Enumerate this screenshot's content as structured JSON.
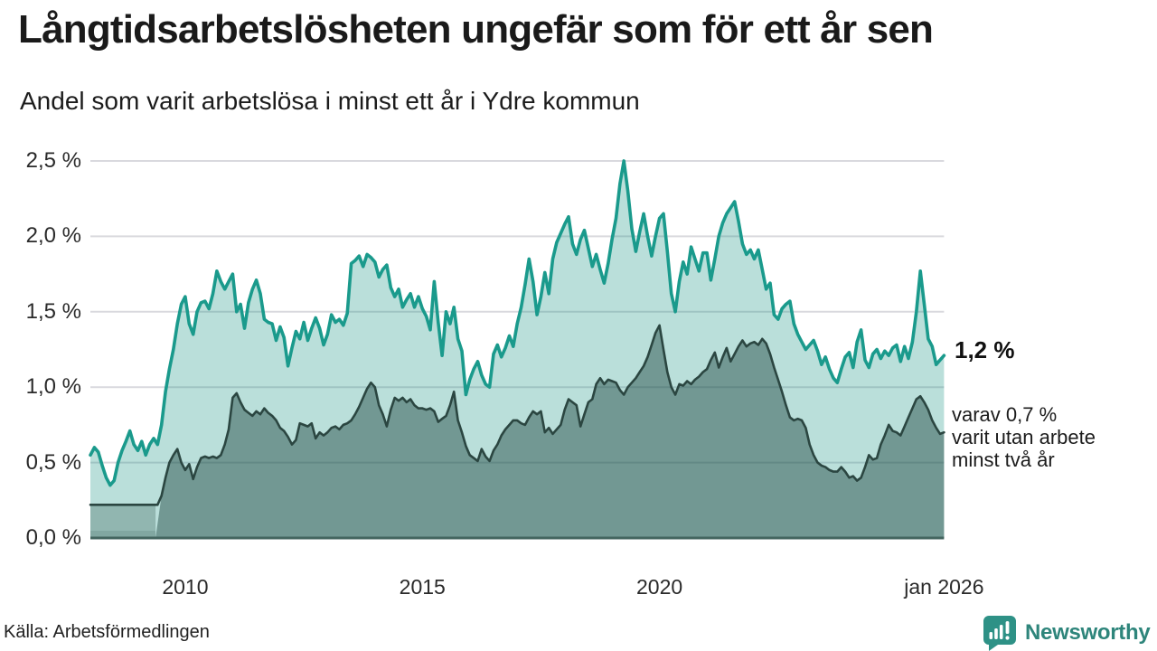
{
  "header": {
    "title": "Långtidsarbetslösheten ungefär som för ett år sen",
    "subtitle": "Andel som varit arbetslösa i minst ett år i Ydre kommun"
  },
  "footer": {
    "source": "Källa: Arbetsförmedlingen",
    "logo_text": "Newsworthy"
  },
  "chart_data": {
    "type": "area",
    "title": "Andel som varit arbetslösa i minst ett år i Ydre kommun",
    "x_start": "2008-01",
    "x_end": "2026-01",
    "frequency": "monthly",
    "ylim": [
      0,
      2.5
    ],
    "y_tick_labels": [
      "0,0 %",
      "0,5 %",
      "1,0 %",
      "1,5 %",
      "2,0 %",
      "2,5 %"
    ],
    "x_ticks": [
      {
        "label": "2010",
        "month": 24
      },
      {
        "label": "2015",
        "month": 84
      },
      {
        "label": "2020",
        "month": 144
      },
      {
        "label": "jan 2026",
        "month": 216
      }
    ],
    "grid": "horizontal",
    "legend": "none",
    "annotations": {
      "end_value_label": "1,2 %",
      "sub_label": [
        "varav 0,7 %",
        "varit utan arbete",
        "minst två år"
      ]
    },
    "colors": {
      "line_teal": "#1a9a8c",
      "area_light": "rgba(26,150,134,0.30)",
      "line_dark": "#2b4641",
      "area_dark": "rgba(27,66,59,0.45)",
      "area_pre": "rgba(27,66,59,0.26)",
      "area_pre_bottom": "rgba(27,66,59,0.13)",
      "grid": "#d9d9de",
      "axis": "#43655f",
      "accent": "#2e9186"
    },
    "two_year_fill_start": 18,
    "series": [
      {
        "name": "Arbetslösa minst ett år (%)",
        "values": [
          0.55,
          0.6,
          0.57,
          0.48,
          0.4,
          0.35,
          0.38,
          0.5,
          0.58,
          0.64,
          0.71,
          0.62,
          0.58,
          0.64,
          0.55,
          0.62,
          0.66,
          0.62,
          0.75,
          0.97,
          1.12,
          1.25,
          1.42,
          1.55,
          1.6,
          1.42,
          1.35,
          1.5,
          1.56,
          1.57,
          1.52,
          1.62,
          1.77,
          1.7,
          1.65,
          1.7,
          1.75,
          1.5,
          1.55,
          1.39,
          1.56,
          1.65,
          1.71,
          1.62,
          1.45,
          1.43,
          1.42,
          1.31,
          1.4,
          1.33,
          1.14,
          1.26,
          1.37,
          1.32,
          1.43,
          1.31,
          1.39,
          1.46,
          1.39,
          1.28,
          1.35,
          1.48,
          1.43,
          1.45,
          1.41,
          1.49,
          1.82,
          1.84,
          1.87,
          1.8,
          1.88,
          1.86,
          1.83,
          1.73,
          1.78,
          1.81,
          1.66,
          1.6,
          1.65,
          1.53,
          1.58,
          1.62,
          1.53,
          1.6,
          1.52,
          1.47,
          1.38,
          1.7,
          1.43,
          1.21,
          1.5,
          1.42,
          1.53,
          1.32,
          1.24,
          0.95,
          1.05,
          1.12,
          1.17,
          1.08,
          1.02,
          1.0,
          1.22,
          1.28,
          1.2,
          1.26,
          1.34,
          1.27,
          1.42,
          1.53,
          1.68,
          1.85,
          1.7,
          1.48,
          1.6,
          1.76,
          1.62,
          1.85,
          1.96,
          2.02,
          2.08,
          2.13,
          1.95,
          1.88,
          1.98,
          2.04,
          1.92,
          1.8,
          1.88,
          1.78,
          1.69,
          1.82,
          1.98,
          2.12,
          2.35,
          2.5,
          2.3,
          2.05,
          1.9,
          2.03,
          2.15,
          2.0,
          1.87,
          2.0,
          2.12,
          2.15,
          1.9,
          1.62,
          1.5,
          1.7,
          1.83,
          1.75,
          1.93,
          1.85,
          1.77,
          1.89,
          1.89,
          1.71,
          1.85,
          2.0,
          2.09,
          2.15,
          2.19,
          2.23,
          2.1,
          1.95,
          1.88,
          1.91,
          1.85,
          1.91,
          1.78,
          1.65,
          1.69,
          1.48,
          1.45,
          1.52,
          1.55,
          1.57,
          1.42,
          1.35,
          1.3,
          1.25,
          1.28,
          1.31,
          1.24,
          1.15,
          1.2,
          1.12,
          1.06,
          1.03,
          1.12,
          1.2,
          1.23,
          1.13,
          1.3,
          1.38,
          1.18,
          1.13,
          1.22,
          1.25,
          1.19,
          1.24,
          1.21,
          1.26,
          1.28,
          1.17,
          1.27,
          1.19,
          1.3,
          1.5,
          1.77,
          1.55,
          1.32,
          1.27,
          1.15,
          1.18,
          1.21
        ]
      },
      {
        "name": "varav arbetslösa minst två år (%)",
        "values": [
          0.22,
          0.22,
          0.22,
          0.22,
          0.22,
          0.22,
          0.22,
          0.22,
          0.22,
          0.22,
          0.22,
          0.22,
          0.22,
          0.22,
          0.22,
          0.22,
          0.22,
          0.22,
          0.28,
          0.4,
          0.5,
          0.55,
          0.59,
          0.5,
          0.45,
          0.49,
          0.39,
          0.47,
          0.53,
          0.54,
          0.53,
          0.54,
          0.53,
          0.55,
          0.62,
          0.72,
          0.93,
          0.96,
          0.9,
          0.85,
          0.83,
          0.81,
          0.84,
          0.82,
          0.86,
          0.83,
          0.81,
          0.78,
          0.73,
          0.71,
          0.67,
          0.62,
          0.65,
          0.76,
          0.75,
          0.74,
          0.76,
          0.66,
          0.7,
          0.68,
          0.7,
          0.73,
          0.74,
          0.72,
          0.75,
          0.76,
          0.78,
          0.82,
          0.87,
          0.93,
          0.99,
          1.03,
          1.0,
          0.88,
          0.82,
          0.74,
          0.85,
          0.93,
          0.91,
          0.93,
          0.9,
          0.92,
          0.88,
          0.86,
          0.86,
          0.85,
          0.86,
          0.84,
          0.77,
          0.79,
          0.81,
          0.88,
          0.97,
          0.78,
          0.7,
          0.61,
          0.55,
          0.53,
          0.51,
          0.59,
          0.54,
          0.51,
          0.58,
          0.62,
          0.68,
          0.72,
          0.75,
          0.78,
          0.78,
          0.76,
          0.75,
          0.8,
          0.84,
          0.82,
          0.84,
          0.7,
          0.73,
          0.69,
          0.72,
          0.75,
          0.85,
          0.92,
          0.9,
          0.88,
          0.74,
          0.82,
          0.9,
          0.92,
          1.02,
          1.06,
          1.02,
          1.05,
          1.04,
          1.03,
          0.98,
          0.95,
          1.0,
          1.03,
          1.06,
          1.1,
          1.14,
          1.2,
          1.28,
          1.36,
          1.41,
          1.25,
          1.1,
          1.0,
          0.95,
          1.02,
          1.01,
          1.04,
          1.02,
          1.05,
          1.07,
          1.1,
          1.12,
          1.18,
          1.23,
          1.13,
          1.2,
          1.26,
          1.17,
          1.22,
          1.27,
          1.31,
          1.27,
          1.29,
          1.3,
          1.28,
          1.32,
          1.29,
          1.22,
          1.13,
          1.05,
          0.97,
          0.88,
          0.8,
          0.78,
          0.79,
          0.78,
          0.73,
          0.62,
          0.55,
          0.5,
          0.48,
          0.47,
          0.45,
          0.44,
          0.44,
          0.47,
          0.44,
          0.4,
          0.41,
          0.38,
          0.4,
          0.47,
          0.55,
          0.52,
          0.53,
          0.62,
          0.68,
          0.75,
          0.71,
          0.7,
          0.68,
          0.74,
          0.8,
          0.86,
          0.92,
          0.94,
          0.9,
          0.85,
          0.78,
          0.73,
          0.69,
          0.7
        ]
      }
    ]
  }
}
